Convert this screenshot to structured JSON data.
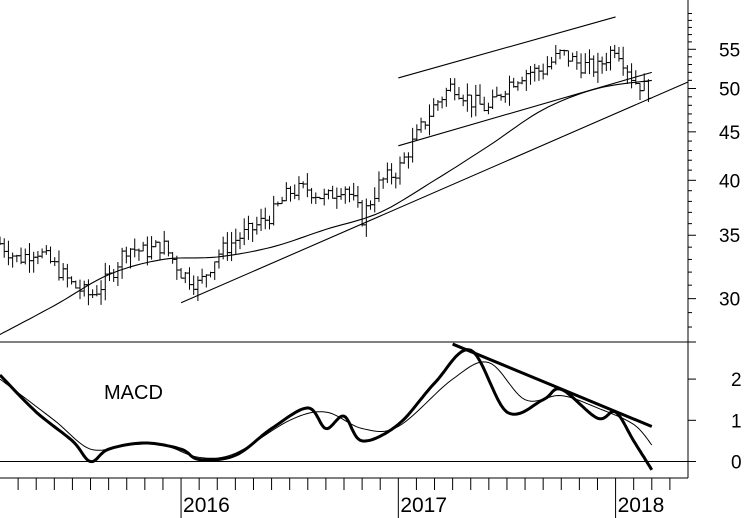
{
  "chart_data": [
    {
      "type": "line",
      "subtype": "ohlc",
      "yscale": "log",
      "ylim": [
        27,
        62
      ],
      "y_ticks": [
        30,
        35,
        40,
        45,
        50,
        55
      ],
      "x_labels": [
        "2016",
        "2017",
        "2018"
      ],
      "xlim": [
        "2015-03",
        "2018-05"
      ],
      "grid": false,
      "colors": {
        "price": "#000000",
        "moving_average": "#000000",
        "trendlines": "#000000"
      },
      "price_closes": [
        [
          "2015-03",
          34.3
        ],
        [
          "2015-04",
          33.0
        ],
        [
          "2015-05",
          33.8
        ],
        [
          "2015-06",
          32.5
        ],
        [
          "2015-07",
          31.0
        ],
        [
          "2015-08",
          30.2
        ],
        [
          "2015-09",
          31.5
        ],
        [
          "2015-10",
          34.0
        ],
        [
          "2015-11",
          33.6
        ],
        [
          "2015-12",
          34.2
        ],
        [
          "2016-01",
          32.0
        ],
        [
          "2016-02",
          31.0
        ],
        [
          "2016-03",
          33.4
        ],
        [
          "2016-04",
          34.6
        ],
        [
          "2016-05",
          35.6
        ],
        [
          "2016-06",
          36.8
        ],
        [
          "2016-07",
          38.9
        ],
        [
          "2016-08",
          39.2
        ],
        [
          "2016-09",
          38.2
        ],
        [
          "2016-10",
          39.6
        ],
        [
          "2016-11",
          36.5
        ],
        [
          "2016-12",
          39.8
        ],
        [
          "2017-01",
          41.0
        ],
        [
          "2017-02",
          44.5
        ],
        [
          "2017-03",
          48.0
        ],
        [
          "2017-04",
          50.5
        ],
        [
          "2017-05",
          48.5
        ],
        [
          "2017-06",
          47.5
        ],
        [
          "2017-07",
          50.5
        ],
        [
          "2017-08",
          52.0
        ],
        [
          "2017-09",
          52.3
        ],
        [
          "2017-10",
          54.5
        ],
        [
          "2017-11",
          53.0
        ],
        [
          "2017-12",
          52.5
        ],
        [
          "2018-01",
          55.5
        ],
        [
          "2018-02",
          51.0
        ],
        [
          "2018-03",
          49.5
        ]
      ],
      "moving_average": [
        [
          "2015-03",
          27.5
        ],
        [
          "2015-06",
          29.5
        ],
        [
          "2015-09",
          31.8
        ],
        [
          "2015-12",
          33.0
        ],
        [
          "2016-03",
          33.2
        ],
        [
          "2016-06",
          34.0
        ],
        [
          "2016-09",
          35.5
        ],
        [
          "2016-12",
          37.0
        ],
        [
          "2017-03",
          40.0
        ],
        [
          "2017-06",
          43.5
        ],
        [
          "2017-09",
          47.5
        ],
        [
          "2017-12",
          50.0
        ],
        [
          "2018-03",
          51.0
        ]
      ],
      "trendlines": [
        {
          "from": [
            "2016-01",
            29.7
          ],
          "to": [
            "2018-05",
            50.8
          ]
        },
        {
          "from": [
            "2017-01",
            51.3
          ],
          "to": [
            "2018-01",
            59.5
          ]
        },
        {
          "from": [
            "2017-01",
            43.5
          ],
          "to": [
            "2018-03",
            52.0
          ]
        }
      ]
    },
    {
      "type": "line",
      "title": "MACD",
      "ylim": [
        -0.4,
        2.9
      ],
      "y_ticks": [
        0,
        1,
        2
      ],
      "zero_line": true,
      "series": [
        {
          "role": "macd",
          "points": [
            [
              "2015-03",
              2.1
            ],
            [
              "2015-05",
              1.2
            ],
            [
              "2015-07",
              0.5
            ],
            [
              "2015-08",
              0.0
            ],
            [
              "2015-09",
              0.3
            ],
            [
              "2015-11",
              0.45
            ],
            [
              "2016-01",
              0.3
            ],
            [
              "2016-02",
              0.05
            ],
            [
              "2016-04",
              0.15
            ],
            [
              "2016-06",
              0.8
            ],
            [
              "2016-08",
              1.3
            ],
            [
              "2016-09",
              0.8
            ],
            [
              "2016-10",
              1.1
            ],
            [
              "2016-11",
              0.5
            ],
            [
              "2017-01",
              0.9
            ],
            [
              "2017-03",
              1.9
            ],
            [
              "2017-05",
              2.7
            ],
            [
              "2017-07",
              1.2
            ],
            [
              "2017-09",
              1.5
            ],
            [
              "2017-10",
              1.75
            ],
            [
              "2017-12",
              1.05
            ],
            [
              "2018-01",
              1.2
            ],
            [
              "2018-02",
              0.5
            ],
            [
              "2018-03",
              -0.2
            ]
          ]
        },
        {
          "role": "signal",
          "points": [
            [
              "2015-03",
              2.0
            ],
            [
              "2015-06",
              1.0
            ],
            [
              "2015-08",
              0.3
            ],
            [
              "2015-10",
              0.4
            ],
            [
              "2015-12",
              0.4
            ],
            [
              "2016-02",
              0.1
            ],
            [
              "2016-04",
              0.2
            ],
            [
              "2016-07",
              1.0
            ],
            [
              "2016-09",
              1.2
            ],
            [
              "2016-11",
              0.8
            ],
            [
              "2017-01",
              0.85
            ],
            [
              "2017-04",
              2.0
            ],
            [
              "2017-06",
              2.4
            ],
            [
              "2017-08",
              1.5
            ],
            [
              "2017-10",
              1.6
            ],
            [
              "2017-12",
              1.3
            ],
            [
              "2018-02",
              0.9
            ],
            [
              "2018-03",
              0.4
            ]
          ]
        }
      ],
      "trendline": {
        "from": [
          "2017-04",
          2.85
        ],
        "to": [
          "2018-03",
          0.85
        ]
      }
    }
  ]
}
